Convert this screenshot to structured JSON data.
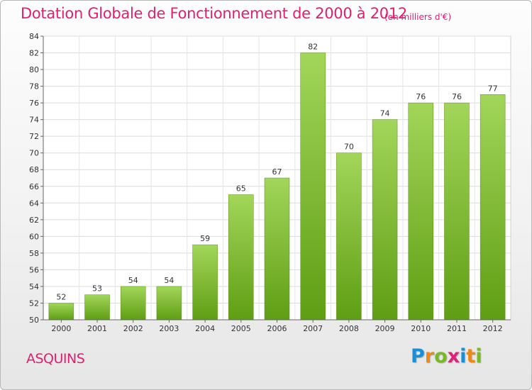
{
  "header": {
    "title": "Dotation Globale de Fonctionnement de 2000 à 2012",
    "subtitle": "(en milliers d'€)"
  },
  "commune": "ASQUINS",
  "logo": {
    "letters": [
      "P",
      "r",
      "o",
      "x",
      "i",
      "t",
      "i"
    ],
    "colors": [
      "#1a8fd6",
      "#e98a1c",
      "#79b928",
      "#d8247a",
      "#1a8fd6",
      "#e98a1c",
      "#79b928"
    ]
  },
  "colors": {
    "accent": "#e0206f",
    "bar_light": "#a2d65a",
    "bar_dark": "#5f9e14"
  },
  "chart_data": {
    "type": "bar",
    "categories": [
      "2000",
      "2001",
      "2002",
      "2003",
      "2004",
      "2005",
      "2006",
      "2007",
      "2008",
      "2009",
      "2010",
      "2011",
      "2012"
    ],
    "values": [
      52,
      53,
      54,
      54,
      59,
      65,
      67,
      82,
      70,
      74,
      76,
      76,
      77
    ],
    "data_labels": [
      "52",
      "53",
      "54",
      "54",
      "59",
      "65",
      "67",
      "82",
      "70",
      "74",
      "76",
      "76",
      "77"
    ],
    "yticks": [
      "50",
      "52",
      "54",
      "56",
      "58",
      "60",
      "62",
      "64",
      "66",
      "68",
      "70",
      "72",
      "74",
      "76",
      "78",
      "80",
      "82",
      "84"
    ],
    "ylim": [
      50,
      84
    ],
    "grid": true
  }
}
